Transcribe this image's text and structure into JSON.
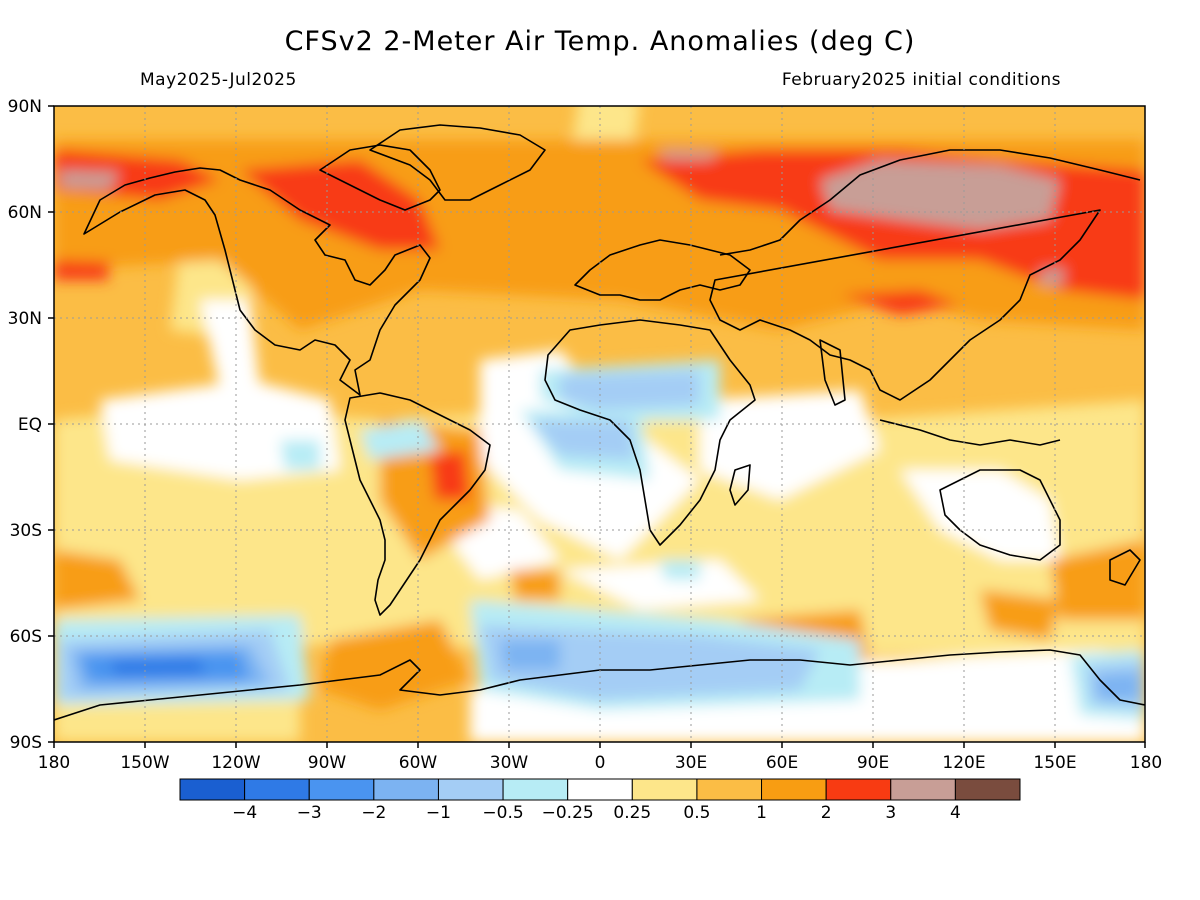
{
  "title": "CFSv2 2-Meter Air Temp. Anomalies (deg C)",
  "subtitle_left": "May2025-Jul2025",
  "subtitle_right": "February2025 initial conditions",
  "lat_labels": [
    "90N",
    "60N",
    "30N",
    "EQ",
    "30S",
    "60S",
    "90S"
  ],
  "lon_labels": [
    "180",
    "150W",
    "120W",
    "90W",
    "60W",
    "30W",
    "0",
    "30E",
    "60E",
    "90E",
    "120E",
    "150E",
    "180"
  ],
  "colorbar": {
    "colors": [
      "#1a5fd1",
      "#2f7ae6",
      "#4a94f0",
      "#7cb3f2",
      "#a4cdf5",
      "#b7ecf5",
      "#ffffff",
      "#fde68a",
      "#fbbd45",
      "#f89d12",
      "#f83b12",
      "#c89e96",
      "#7a4c3e"
    ],
    "labels": [
      "−4",
      "−3",
      "−2",
      "−1",
      "−0.5",
      "−0.25",
      "0.25",
      "0.5",
      "1",
      "2",
      "3",
      "4"
    ]
  }
}
